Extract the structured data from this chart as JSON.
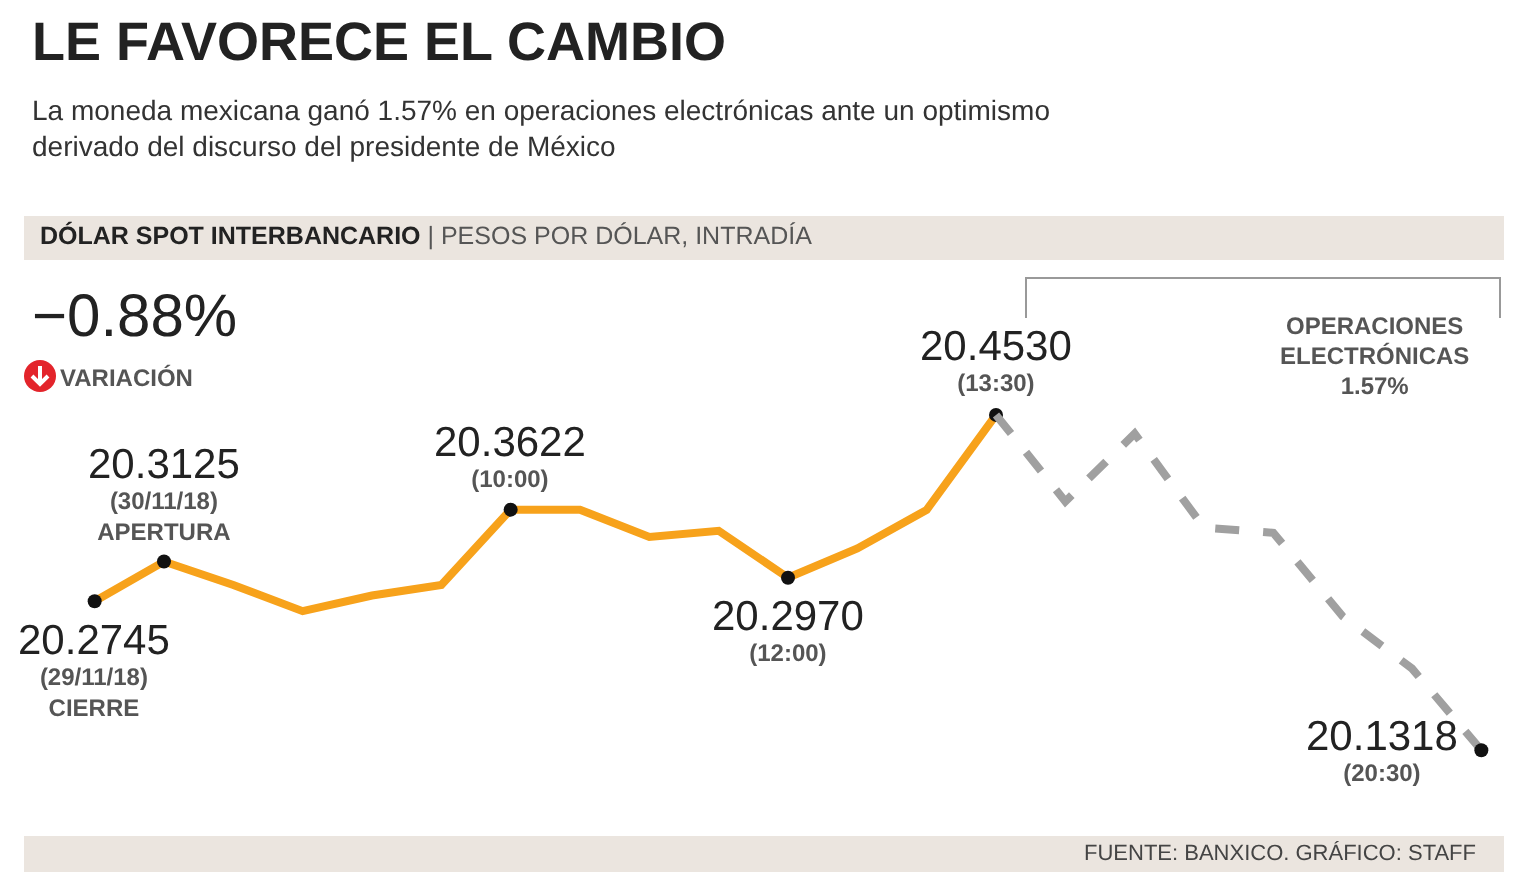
{
  "chart_data": {
    "type": "line",
    "title": "LE FAVORECE EL CAMBIO",
    "subtitle": "La moneda mexicana ganó 1.57% en operaciones electrónicas ante un optimismo\nderivado del discurso del presidente de México",
    "categories": [
      null,
      null,
      null,
      null,
      null,
      null,
      null,
      null,
      null,
      null,
      null,
      null,
      null,
      null,
      null,
      null,
      null,
      null,
      null,
      null,
      null
    ],
    "series": [
      {
        "color": "#f7a21b",
        "line_style": "solid",
        "values": [
          20.2745,
          20.3125,
          20.29,
          20.265,
          20.28,
          20.29,
          20.3622,
          20.3622,
          20.336,
          20.342,
          20.297,
          20.325,
          20.362,
          20.453,
          null,
          null,
          null,
          null,
          null,
          null,
          null
        ],
        "value_labels": [
          "20.2745\n(29/11/18)\nCIERRE",
          "20.3125\n(30/11/18)\nAPERTURA",
          null,
          null,
          null,
          null,
          "20.3622\n(10:00)",
          null,
          null,
          null,
          "20.2970\n(12:00)",
          null,
          null,
          "20.4530\n(13:30)",
          null,
          null,
          null,
          null,
          null,
          null,
          null
        ]
      },
      {
        "color": "#a0a0a0",
        "line_style": "dashed",
        "values": [
          null,
          null,
          null,
          null,
          null,
          null,
          null,
          null,
          null,
          null,
          null,
          null,
          null,
          20.453,
          20.37,
          20.435,
          20.345,
          20.34,
          20.26,
          20.21,
          20.1318
        ],
        "value_labels": [
          null,
          null,
          null,
          null,
          null,
          null,
          null,
          null,
          null,
          null,
          null,
          null,
          null,
          null,
          null,
          null,
          null,
          null,
          null,
          null,
          "20.1318\n(20:30)"
        ]
      }
    ],
    "annotations": [
      "DÓLAR SPOT INTERBANCARIO | PESOS POR DÓLAR, INTRADÍA",
      "−0.88%",
      "VARIACIÓN",
      "OPERACIONES\nELECTRÓNICAS\n1.57%",
      "FUENTE: BANXICO. GRÁFICO: STAFF"
    ]
  }
}
